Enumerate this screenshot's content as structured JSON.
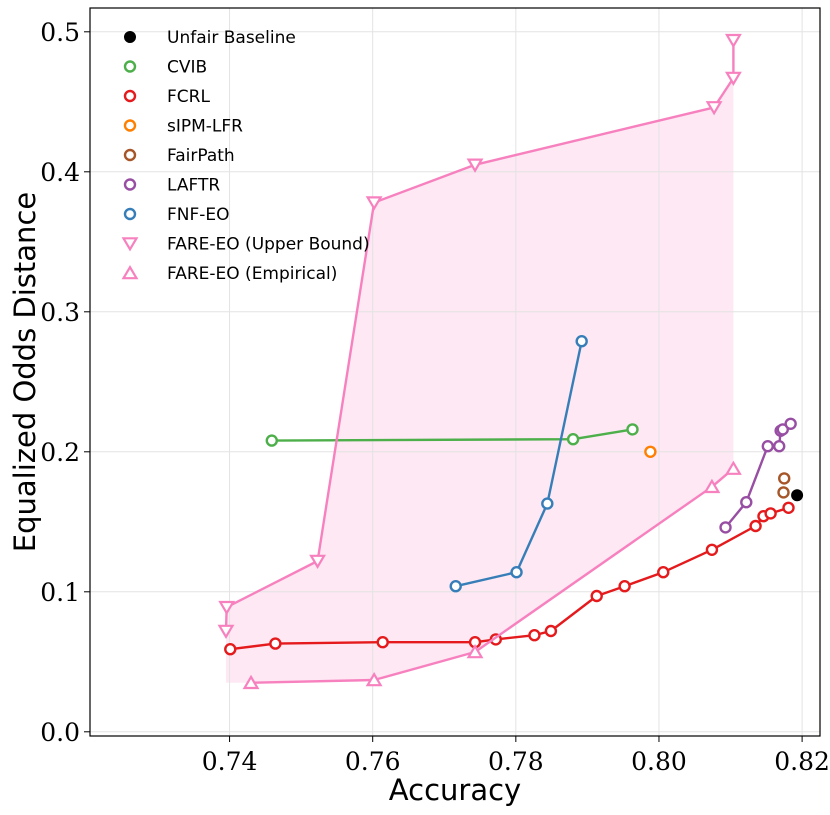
{
  "chart_data": {
    "type": "scatter",
    "xlabel": "Accuracy",
    "ylabel": "Equalized Odds Distance",
    "xlim": [
      0.7205,
      0.8225
    ],
    "ylim": [
      -0.003,
      0.517
    ],
    "grid": true,
    "legend_position": "top-left",
    "xticks": [
      {
        "value": 0.74,
        "label": "0.74"
      },
      {
        "value": 0.76,
        "label": "0.76"
      },
      {
        "value": 0.78,
        "label": "0.78"
      },
      {
        "value": 0.8,
        "label": "0.80"
      },
      {
        "value": 0.82,
        "label": "0.82"
      }
    ],
    "yticks": [
      {
        "value": 0.0,
        "label": "0.0"
      },
      {
        "value": 0.1,
        "label": "0.1"
      },
      {
        "value": 0.2,
        "label": "0.2"
      },
      {
        "value": 0.3,
        "label": "0.3"
      },
      {
        "value": 0.4,
        "label": "0.4"
      },
      {
        "value": 0.5,
        "label": "0.5"
      }
    ],
    "fill_region": {
      "color": "#fde8f3",
      "upper_series": "FARE-EO (Upper Bound)",
      "lower_series": "FARE-EO (Empirical)"
    },
    "series": [
      {
        "name": "Unfair Baseline",
        "color": "#000000",
        "marker": "filled-circle",
        "line": false,
        "points": [
          [
            0.8193,
            0.169
          ]
        ]
      },
      {
        "name": "CVIB",
        "color": "#4daf4a",
        "marker": "circle",
        "line": true,
        "points": [
          [
            0.7459,
            0.208
          ],
          [
            0.788,
            0.209
          ],
          [
            0.7963,
            0.216
          ]
        ]
      },
      {
        "name": "FCRL",
        "color": "#e41a1c",
        "marker": "circle",
        "line": true,
        "points": [
          [
            0.7401,
            0.059
          ],
          [
            0.7464,
            0.063
          ],
          [
            0.7614,
            0.064
          ],
          [
            0.7743,
            0.064
          ],
          [
            0.7772,
            0.066
          ],
          [
            0.7826,
            0.069
          ],
          [
            0.7849,
            0.072
          ],
          [
            0.7913,
            0.097
          ],
          [
            0.7952,
            0.104
          ],
          [
            0.8006,
            0.114
          ],
          [
            0.8074,
            0.13
          ],
          [
            0.8135,
            0.147
          ],
          [
            0.8146,
            0.154
          ],
          [
            0.8156,
            0.156
          ],
          [
            0.8181,
            0.16
          ]
        ]
      },
      {
        "name": "sIPM-LFR",
        "color": "#ff7f00",
        "marker": "circle",
        "line": false,
        "points": [
          [
            0.7988,
            0.2
          ]
        ]
      },
      {
        "name": "FairPath",
        "color": "#a65628",
        "marker": "circle",
        "line": false,
        "points": [
          [
            0.8174,
            0.171
          ],
          [
            0.8175,
            0.181
          ]
        ]
      },
      {
        "name": "LAFTR",
        "color": "#984ea3",
        "marker": "circle",
        "line": true,
        "points": [
          [
            0.8093,
            0.146
          ],
          [
            0.8122,
            0.164
          ],
          [
            0.8152,
            0.204
          ],
          [
            0.8168,
            0.204
          ],
          [
            0.817,
            0.215
          ],
          [
            0.8173,
            0.216
          ],
          [
            0.8184,
            0.22
          ]
        ]
      },
      {
        "name": "FNF-EO",
        "color": "#377eb8",
        "marker": "circle",
        "line": true,
        "points": [
          [
            0.7716,
            0.104
          ],
          [
            0.7801,
            0.114
          ],
          [
            0.7844,
            0.163
          ],
          [
            0.7892,
            0.279
          ]
        ]
      },
      {
        "name": "FARE-EO (Upper Bound)",
        "color": "#f781bf",
        "marker": "triangle-down",
        "line": true,
        "points": [
          [
            0.7395,
            0.072
          ],
          [
            0.7396,
            0.089
          ],
          [
            0.7523,
            0.122
          ],
          [
            0.7602,
            0.378
          ],
          [
            0.7743,
            0.405
          ],
          [
            0.8077,
            0.446
          ],
          [
            0.8104,
            0.467
          ],
          [
            0.8104,
            0.494
          ]
        ]
      },
      {
        "name": "FARE-EO (Empirical)",
        "color": "#f781bf",
        "marker": "triangle-up",
        "line": true,
        "points": [
          [
            0.743,
            0.035
          ],
          [
            0.7602,
            0.037
          ],
          [
            0.7743,
            0.057
          ],
          [
            0.8074,
            0.175
          ],
          [
            0.8104,
            0.188
          ]
        ]
      }
    ]
  }
}
